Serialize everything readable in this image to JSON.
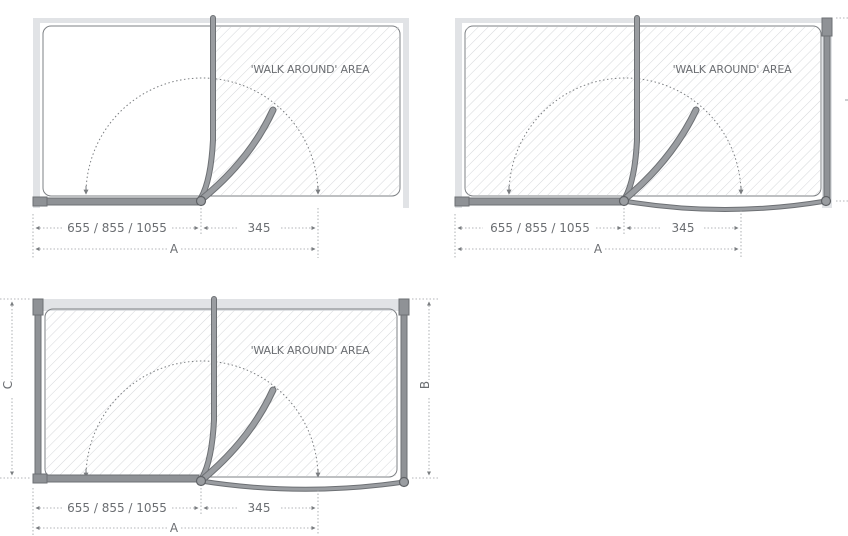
{
  "colors": {
    "frame_gray": "#8f9296",
    "wall_light": "#e1e3e6",
    "hatch": "#d5d7da",
    "text": "#6b6e72",
    "dotted": "#7a7d80",
    "tray_outline": "#7d8084"
  },
  "diagram_1": {
    "area_label": "'WALK AROUND' AREA",
    "dim_left": "655 / 855 / 1055",
    "dim_right": "345",
    "dim_total": "A"
  },
  "diagram_2": {
    "area_label": "'WALK AROUND' AREA",
    "dim_left": "655 / 855 / 1055",
    "dim_right": "345",
    "dim_total": "A"
  },
  "diagram_3": {
    "area_label": "'WALK AROUND' AREA",
    "dim_left": "655 / 855 / 1055",
    "dim_right": "345",
    "dim_total": "A",
    "dim_height_left": "C",
    "dim_height_right": "B"
  }
}
